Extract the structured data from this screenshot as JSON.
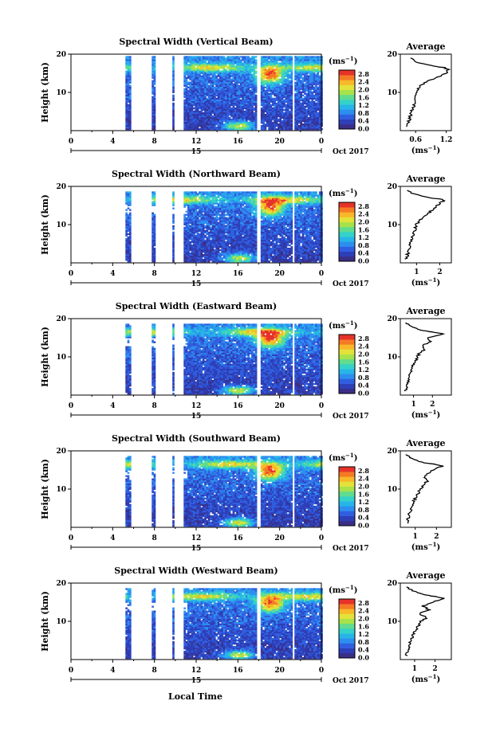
{
  "figure": {
    "xlabel": "Local Time",
    "date_label": "Oct 2017",
    "day_label": "15",
    "colorbar_unit": "(ms",
    "colorbar_unit_sup": "−1",
    "colorbar_unit_close": ")",
    "colorbar_ticks": [
      "2.8",
      "2.4",
      "2.0",
      "1.6",
      "1.2",
      "0.8",
      "0.4",
      "0.0"
    ],
    "colorscale": [
      "#3a2e86",
      "#2e3fb8",
      "#2f5fe0",
      "#2d8ef0",
      "#27b5e8",
      "#35d2c8",
      "#60dc8e",
      "#a8e24a",
      "#e4e23a",
      "#f8b829",
      "#f57a24",
      "#e5332a"
    ],
    "avg_title": "Average",
    "avg_unit": "(ms",
    "avg_unit_sup": "−1",
    "avg_unit_close": ")",
    "height_label": "Height (km)",
    "x_ticks": [
      "0",
      "4",
      "8",
      "12",
      "16",
      "20",
      "0"
    ],
    "y_ticks": [
      "20",
      "10"
    ]
  },
  "chart_data": [
    {
      "type": "heatmap",
      "title": "Spectral Width (Vertical Beam)",
      "xlabel": "Local Time",
      "ylabel": "Height (km)",
      "xlim": [
        0,
        24
      ],
      "ylim": [
        0,
        20
      ],
      "color_range": [
        0,
        3.2
      ],
      "data_gaps_hours": [
        [
          0,
          5.3
        ],
        [
          5.7,
          7.8
        ],
        [
          8.1,
          9.7
        ],
        [
          9.9,
          10.8
        ],
        [
          17.8,
          18.2
        ],
        [
          21.2,
          21.5
        ]
      ],
      "avg_profile": {
        "xlim_ticks": [
          "0.6",
          "1.2"
        ],
        "xlim": [
          0.3,
          1.3
        ],
        "height_km": [
          1,
          2,
          3,
          4,
          5,
          6,
          7,
          8,
          9,
          10,
          11,
          12,
          13,
          14,
          15,
          16,
          16.5,
          17,
          18,
          19
        ],
        "width_ms": [
          0.42,
          0.45,
          0.48,
          0.5,
          0.52,
          0.55,
          0.57,
          0.58,
          0.6,
          0.63,
          0.66,
          0.72,
          0.85,
          1.05,
          1.18,
          1.25,
          1.15,
          0.9,
          0.6,
          0.5
        ]
      }
    },
    {
      "type": "heatmap",
      "title": "Spectral Width (Northward Beam)",
      "xlabel": "Local Time",
      "ylabel": "Height (km)",
      "xlim": [
        0,
        24
      ],
      "ylim": [
        0,
        20
      ],
      "color_range": [
        0,
        3.2
      ],
      "data_gaps_hours": [
        [
          0,
          5.3
        ],
        [
          5.7,
          7.8
        ],
        [
          8.1,
          9.7
        ],
        [
          9.9,
          10.8
        ],
        [
          17.8,
          18.2
        ],
        [
          21.2,
          21.5
        ]
      ],
      "avg_profile": {
        "xlim_ticks": [
          "1",
          "2"
        ],
        "xlim": [
          0.3,
          2.5
        ],
        "height_km": [
          1,
          2,
          3,
          4,
          5,
          6,
          7,
          8,
          9,
          10,
          11,
          12,
          13,
          14,
          15,
          16,
          16.5,
          17,
          18,
          19
        ],
        "width_ms": [
          0.55,
          0.6,
          0.65,
          0.7,
          0.75,
          0.8,
          0.85,
          0.9,
          0.95,
          1.0,
          1.1,
          1.3,
          1.5,
          1.7,
          1.9,
          2.1,
          2.2,
          1.6,
          0.9,
          0.6
        ]
      }
    },
    {
      "type": "heatmap",
      "title": "Spectral Width (Eastward Beam)",
      "xlabel": "Local Time",
      "ylabel": "Height (km)",
      "xlim": [
        0,
        24
      ],
      "ylim": [
        0,
        20
      ],
      "color_range": [
        0,
        3.2
      ],
      "data_gaps_hours": [
        [
          0,
          5.3
        ],
        [
          5.7,
          7.8
        ],
        [
          8.1,
          9.7
        ],
        [
          9.9,
          10.8
        ],
        [
          17.8,
          18.2
        ],
        [
          21.2,
          21.5
        ]
      ],
      "avg_profile": {
        "xlim_ticks": [
          "1",
          "2"
        ],
        "xlim": [
          0.3,
          3.0
        ],
        "height_km": [
          1,
          2,
          3,
          4,
          5,
          6,
          7,
          8,
          9,
          10,
          11,
          12,
          13,
          14,
          15,
          16,
          16.5,
          17,
          18,
          19
        ],
        "width_ms": [
          0.6,
          0.65,
          0.7,
          0.75,
          0.8,
          0.85,
          0.9,
          1.0,
          1.1,
          1.2,
          1.3,
          1.6,
          1.5,
          1.9,
          1.7,
          2.6,
          2.0,
          1.4,
          0.9,
          0.6
        ]
      }
    },
    {
      "type": "heatmap",
      "title": "Spectral Width (Southward Beam)",
      "xlabel": "Local Time",
      "ylabel": "Height (km)",
      "xlim": [
        0,
        24
      ],
      "ylim": [
        0,
        20
      ],
      "color_range": [
        0,
        3.2
      ],
      "data_gaps_hours": [
        [
          0,
          5.3
        ],
        [
          5.7,
          7.8
        ],
        [
          8.1,
          9.7
        ],
        [
          9.9,
          10.8
        ],
        [
          17.8,
          18.2
        ],
        [
          21.2,
          21.5
        ]
      ],
      "avg_profile": {
        "xlim_ticks": [
          "1",
          "2"
        ],
        "xlim": [
          0.3,
          2.7
        ],
        "height_km": [
          1,
          2,
          3,
          4,
          5,
          6,
          7,
          8,
          9,
          10,
          11,
          12,
          13,
          14,
          15,
          16,
          16.5,
          17,
          18,
          19
        ],
        "width_ms": [
          0.6,
          0.65,
          0.7,
          0.75,
          0.8,
          0.85,
          0.95,
          1.05,
          1.15,
          1.25,
          1.4,
          1.55,
          1.45,
          1.6,
          1.8,
          2.3,
          1.9,
          1.3,
          0.8,
          0.55
        ]
      }
    },
    {
      "type": "heatmap",
      "title": "Spectral Width (Westward Beam)",
      "xlabel": "Local Time",
      "ylabel": "Height (km)",
      "xlim": [
        0,
        24
      ],
      "ylim": [
        0,
        20
      ],
      "color_range": [
        0,
        3.2
      ],
      "data_gaps_hours": [
        [
          0,
          5.3
        ],
        [
          5.7,
          7.8
        ],
        [
          8.1,
          9.7
        ],
        [
          9.9,
          10.8
        ],
        [
          17.8,
          18.2
        ],
        [
          21.2,
          21.5
        ]
      ],
      "avg_profile": {
        "xlim_ticks": [
          "1",
          "2"
        ],
        "xlim": [
          0.3,
          2.8
        ],
        "height_km": [
          1,
          2,
          3,
          4,
          5,
          6,
          7,
          8,
          9,
          10,
          11,
          12,
          13,
          14,
          15,
          16,
          16.5,
          17,
          18,
          19
        ],
        "width_ms": [
          0.6,
          0.65,
          0.7,
          0.75,
          0.8,
          0.9,
          1.0,
          1.1,
          1.2,
          1.3,
          1.6,
          1.2,
          1.7,
          1.4,
          1.9,
          2.4,
          2.0,
          1.4,
          0.9,
          0.6
        ]
      }
    }
  ]
}
